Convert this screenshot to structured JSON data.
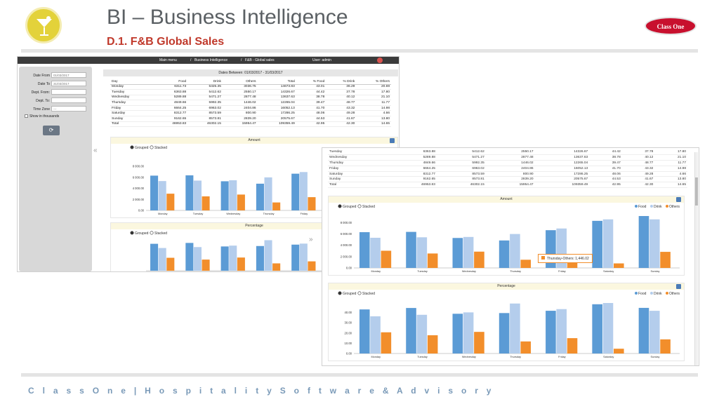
{
  "slide": {
    "title": "BI – Business Intelligence",
    "subtitle": "D.1. F&B Global Sales",
    "brand": "Class One",
    "footer": "C l a s s O n e | H o s p i t a l i t y S o f t w a r e & A d v i s o r y",
    "colors": {
      "title": "#5b6064",
      "subtitle": "#c0392b",
      "brand": "#c8102e",
      "footer": "#7a9ab8",
      "food": "#5b9bd5",
      "drink": "#b4cdec",
      "others": "#f28e2b"
    }
  },
  "app": {
    "topbar": {
      "menu": "Main menu",
      "module": "Business Intelligence",
      "page": "F&B - Global sales",
      "user": "User: admin"
    },
    "filters": {
      "date_from_label": "Date From",
      "date_from_value": "01/03/2017",
      "date_to_label": "Date To",
      "date_to_value": "31/03/2017",
      "dept_from_label": "Dept. From:",
      "dept_to_label": "Dept. To:",
      "timezone_label": "Time Zone",
      "timezone_value": "---",
      "thousands_label": "Show in thousands",
      "refresh_icon": "refresh-icon"
    },
    "dates_header": "Dates Between: 01/03/2017 - 31/03/2017",
    "table": {
      "headers": [
        "Day",
        "Food",
        "Drink",
        "Others",
        "Total",
        "% Food",
        "% Drink",
        "% Others"
      ],
      "rows": [
        [
          "Monday",
          "6311.73",
          "5325.35",
          "3036.75",
          "14673.83",
          "43.01",
          "36.29",
          "20.69"
        ],
        [
          "Tuesday",
          "6363.88",
          "5412.62",
          "2550.17",
          "14326.67",
          "44.42",
          "37.78",
          "17.80"
        ],
        [
          "Wednesday",
          "5289.88",
          "5471.27",
          "2877.48",
          "13637.63",
          "38.78",
          "40.12",
          "21.10"
        ],
        [
          "Thursday",
          "4849.66",
          "5992.35",
          "1446.02",
          "12265.04",
          "39.47",
          "48.77",
          "11.77"
        ],
        [
          "Friday",
          "6664.25",
          "6963.02",
          "2404.86",
          "16052.13",
          "41.70",
          "43.32",
          "14.98"
        ],
        [
          "Saturday",
          "8312.77",
          "8573.59",
          "800.90",
          "17286.25",
          "48.06",
          "49.28",
          "4.66"
        ],
        [
          "Sunday",
          "9162.65",
          "8573.81",
          "2839.20",
          "20575.67",
          "44.53",
          "41.67",
          "13.80"
        ],
        [
          "Total",
          "46953.83",
          "46302.15",
          "15954.47",
          "109359.49",
          "42.95",
          "42.30",
          "14.65"
        ]
      ]
    },
    "table2_rows": [
      [
        "Tuesday",
        "6363.88",
        "5412.62",
        "2550.17",
        "14326.67",
        "44.42",
        "37.78",
        "17.80"
      ],
      [
        "Wednesday",
        "5289.88",
        "5471.27",
        "2877.48",
        "13637.63",
        "38.78",
        "40.12",
        "21.10"
      ],
      [
        "Thursday",
        "4849.66",
        "5992.35",
        "1446.02",
        "12265.04",
        "39.47",
        "48.77",
        "11.77"
      ],
      [
        "Friday",
        "6664.25",
        "6963.02",
        "2404.86",
        "16052.13",
        "41.70",
        "43.32",
        "14.98"
      ],
      [
        "Saturday",
        "8312.77",
        "8573.59",
        "800.90",
        "17286.25",
        "48.06",
        "49.28",
        "4.66"
      ],
      [
        "Sunday",
        "9162.65",
        "8573.81",
        "2839.20",
        "20575.67",
        "44.53",
        "41.67",
        "13.80"
      ],
      [
        "Total",
        "46953.83",
        "46302.15",
        "15954.47",
        "109359.49",
        "42.95",
        "42.30",
        "14.65"
      ]
    ],
    "tooltip": "Thursday-Others: 1,446.02"
  },
  "chart_data": [
    {
      "type": "bar",
      "title": "Amount",
      "toggles": [
        "Grouped",
        "Stacked"
      ],
      "categories": [
        "Monday",
        "Tuesday",
        "Wednesday",
        "Thursday",
        "Friday",
        "Saturday",
        "Sunday"
      ],
      "series": [
        {
          "name": "Food",
          "values": [
            6311.73,
            6363.88,
            5289.88,
            4849.66,
            6664.25,
            8312.77,
            9162.65
          ]
        },
        {
          "name": "Drink",
          "values": [
            5325.35,
            5412.62,
            5471.27,
            5992.35,
            6963.02,
            8573.59,
            8573.81
          ]
        },
        {
          "name": "Others",
          "values": [
            3036.75,
            2550.17,
            2877.48,
            1446.02,
            2404.86,
            800.9,
            2839.2
          ]
        }
      ],
      "yticks": [
        "0.00",
        "2 000.00",
        "4 000.00",
        "6 000.00",
        "8 000.00"
      ],
      "ylim": [
        0,
        9162.65
      ]
    },
    {
      "type": "bar",
      "title": "Percentage",
      "toggles": [
        "Grouped",
        "Stacked"
      ],
      "categories": [
        "Monday",
        "Tuesday",
        "Wednesday",
        "Thursday",
        "Friday",
        "Saturday",
        "Sunday"
      ],
      "series": [
        {
          "name": "Food",
          "values": [
            43.01,
            44.42,
            38.78,
            39.47,
            41.7,
            48.06,
            44.53
          ]
        },
        {
          "name": "Drink",
          "values": [
            36.29,
            37.78,
            40.12,
            48.77,
            43.32,
            49.28,
            41.67
          ]
        },
        {
          "name": "Others",
          "values": [
            20.69,
            17.8,
            21.1,
            11.77,
            14.98,
            4.66,
            13.8
          ]
        }
      ],
      "yticks": [
        "0.00",
        "10.00",
        "20.00",
        "30.00",
        "40.00"
      ],
      "ylim": [
        0,
        49.28
      ]
    }
  ]
}
